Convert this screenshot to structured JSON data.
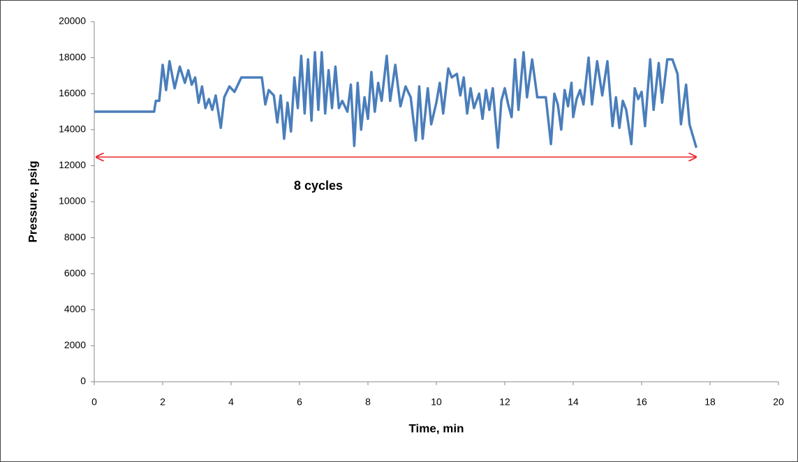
{
  "chart_data": {
    "type": "line",
    "x_label": "Time, min",
    "y_label": "Pressure, psig",
    "annotation": "8 cycles",
    "color": "#4a7ebb",
    "xlim": [
      0,
      20
    ],
    "xticks": [
      0,
      2,
      4,
      6,
      8,
      10,
      12,
      14,
      16,
      18,
      20
    ],
    "ylim": [
      0,
      20000
    ],
    "yticks": [
      0,
      2000,
      4000,
      6000,
      8000,
      10000,
      12000,
      14000,
      16000,
      18000,
      20000
    ],
    "grid": false,
    "x": [
      0,
      1.75,
      1.8,
      1.9,
      2.0,
      2.1,
      2.2,
      2.35,
      2.5,
      2.65,
      2.75,
      2.85,
      2.95,
      3.05,
      3.15,
      3.25,
      3.35,
      3.45,
      3.55,
      3.7,
      3.8,
      3.95,
      4.1,
      4.3,
      4.6,
      4.9,
      5.0,
      5.1,
      5.25,
      5.35,
      5.45,
      5.55,
      5.65,
      5.75,
      5.85,
      5.95,
      6.05,
      6.15,
      6.25,
      6.35,
      6.45,
      6.55,
      6.65,
      6.75,
      6.85,
      6.95,
      7.05,
      7.15,
      7.25,
      7.4,
      7.5,
      7.6,
      7.7,
      7.8,
      7.9,
      8.0,
      8.1,
      8.2,
      8.3,
      8.4,
      8.55,
      8.65,
      8.8,
      8.95,
      9.1,
      9.25,
      9.4,
      9.5,
      9.6,
      9.75,
      9.85,
      10.0,
      10.1,
      10.2,
      10.35,
      10.45,
      10.6,
      10.7,
      10.8,
      10.9,
      11.0,
      11.1,
      11.25,
      11.35,
      11.45,
      11.55,
      11.65,
      11.8,
      11.9,
      12.0,
      12.1,
      12.2,
      12.3,
      12.4,
      12.55,
      12.65,
      12.8,
      12.95,
      13.1,
      13.2,
      13.35,
      13.45,
      13.55,
      13.65,
      13.75,
      13.85,
      13.95,
      14.0,
      14.1,
      14.2,
      14.3,
      14.45,
      14.55,
      14.7,
      14.85,
      15.0,
      15.15,
      15.25,
      15.35,
      15.45,
      15.55,
      15.7,
      15.8,
      15.9,
      16.0,
      16.1,
      16.25,
      16.35,
      16.5,
      16.6,
      16.75,
      16.9,
      17.05,
      17.15,
      17.3,
      17.4,
      17.6
    ],
    "values": [
      15000,
      15000,
      15600,
      15600,
      17600,
      16200,
      17800,
      16300,
      17500,
      16600,
      17300,
      16500,
      16900,
      15500,
      16400,
      15200,
      15700,
      15100,
      15900,
      14100,
      15800,
      16400,
      16100,
      16900,
      16900,
      16900,
      15400,
      16200,
      15900,
      14400,
      15900,
      13500,
      15500,
      13900,
      16900,
      15200,
      18100,
      14900,
      17900,
      14500,
      18300,
      15100,
      18300,
      14900,
      17300,
      15200,
      17500,
      15200,
      15600,
      15000,
      16500,
      13100,
      16600,
      14000,
      15800,
      14600,
      17200,
      15000,
      16600,
      15600,
      18100,
      15600,
      17600,
      15300,
      16400,
      15800,
      13400,
      16400,
      13500,
      16300,
      14300,
      15500,
      16600,
      14900,
      17400,
      16900,
      17100,
      15900,
      16900,
      14900,
      16300,
      15200,
      16000,
      14600,
      16200,
      15100,
      16300,
      13000,
      15600,
      16300,
      15400,
      14700,
      17900,
      15100,
      18300,
      15800,
      17900,
      15800,
      15800,
      15800,
      13200,
      16000,
      15400,
      14000,
      16200,
      15300,
      16600,
      14700,
      15700,
      16200,
      15400,
      18000,
      15400,
      17800,
      15900,
      17800,
      14200,
      15800,
      14100,
      15600,
      15100,
      13200,
      16300,
      15700,
      16100,
      14200,
      17900,
      15100,
      17700,
      15500,
      17900,
      17900,
      17100,
      14300,
      16500,
      14300,
      13000
    ]
  }
}
